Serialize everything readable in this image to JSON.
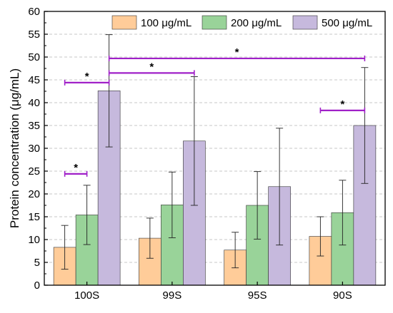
{
  "chart_data": {
    "type": "bar",
    "title": "",
    "xlabel": "",
    "ylabel": "Protein concentration (μg/mL)",
    "ylim": [
      0,
      60
    ],
    "yticks": [
      0,
      5,
      10,
      15,
      20,
      25,
      30,
      35,
      40,
      45,
      50,
      55,
      60
    ],
    "grid": "horizontal-dashed",
    "legend": "top",
    "categories": [
      "100S",
      "99S",
      "95S",
      "90S"
    ],
    "series": [
      {
        "name": "100 μg/mL",
        "color": "#FFCC99",
        "values": [
          8.3,
          10.3,
          7.7,
          10.7
        ],
        "errors": [
          4.8,
          4.4,
          3.9,
          4.3
        ]
      },
      {
        "name": "200 μg/mL",
        "color": "#99D399",
        "values": [
          15.4,
          17.6,
          17.5,
          15.9
        ],
        "errors": [
          6.5,
          7.2,
          7.4,
          7.1
        ]
      },
      {
        "name": "500 μg/mL",
        "color": "#C6B9DD",
        "values": [
          42.6,
          31.6,
          21.6,
          35.0
        ],
        "errors": [
          12.3,
          14.1,
          12.8,
          12.7
        ]
      }
    ],
    "significance": [
      {
        "label": "*",
        "from": "100S:100 μg/mL",
        "to": "100S:200 μg/mL",
        "y": 24.4
      },
      {
        "label": "*",
        "from": "100S:100 μg/mL",
        "to": "100S:500 μg/mL",
        "y": 44.4
      },
      {
        "label": "*",
        "from": "100S:500 μg/mL",
        "to": "99S:500 μg/mL",
        "y": 46.5
      },
      {
        "label": "*",
        "from": "100S:500 μg/mL",
        "to": "90S:500 μg/mL",
        "y": 49.7
      },
      {
        "label": "*",
        "from": "90S:100 μg/mL",
        "to": "90S:500 μg/mL",
        "y": 38.3
      }
    ],
    "significance_color": "#A020C8"
  }
}
